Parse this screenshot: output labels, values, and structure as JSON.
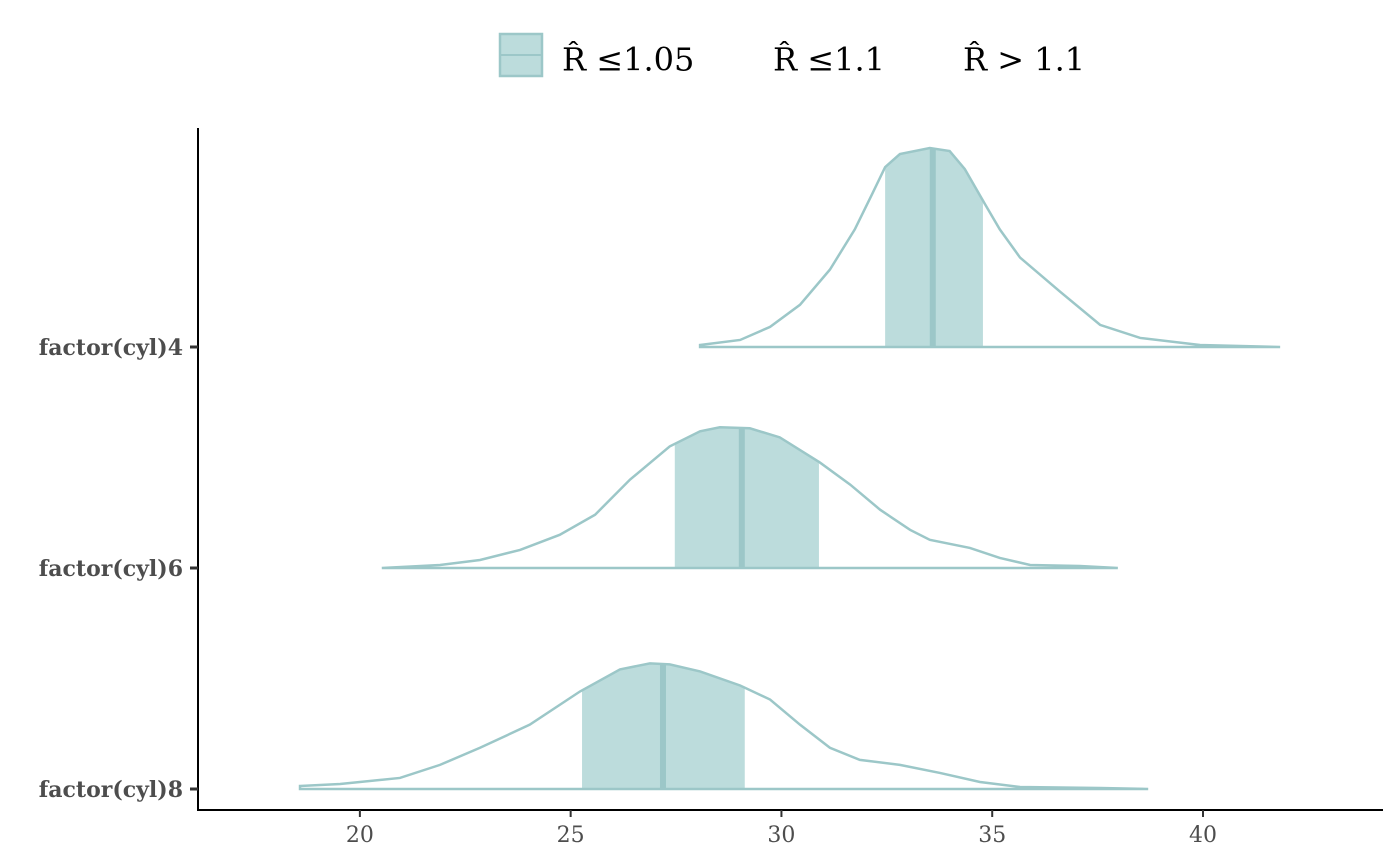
{
  "chart_data": {
    "type": "ridgeline",
    "legend": [
      {
        "name": "R̂ ≤1.05",
        "color": "#bcdcdc",
        "edge": "#9cc7c8"
      },
      {
        "name": "R̂ ≤1.1"
      },
      {
        "name": "R̂ > 1.1"
      }
    ],
    "categories": [
      "factor(cyl)4",
      "factor(cyl)6",
      "factor(cyl)8"
    ],
    "series": [
      {
        "x": [
          28.07,
          29.02,
          29.73,
          30.44,
          31.15,
          31.74,
          32.15,
          32.46,
          32.81,
          33.52,
          33.99,
          34.35,
          34.83,
          35.18,
          35.66,
          36.61,
          37.56,
          38.51,
          39.93,
          41.83
        ],
        "values": [
          0.002,
          0.007,
          0.02,
          0.042,
          0.077,
          0.117,
          0.152,
          0.179,
          0.192,
          0.198,
          0.195,
          0.177,
          0.142,
          0.117,
          0.089,
          0.055,
          0.022,
          0.009,
          0.002,
          0.0
        ],
        "interval": [
          32.46,
          34.78
        ],
        "median": 33.59
      },
      {
        "x": [
          20.52,
          21.9,
          22.85,
          23.8,
          24.74,
          25.58,
          26.41,
          27.35,
          28.07,
          28.54,
          29.25,
          29.96,
          30.91,
          31.63,
          32.34,
          33.05,
          33.52,
          34.47,
          35.18,
          35.9,
          37.08,
          37.98
        ],
        "values": [
          0.0,
          0.003,
          0.008,
          0.018,
          0.033,
          0.053,
          0.088,
          0.121,
          0.136,
          0.14,
          0.139,
          0.13,
          0.105,
          0.083,
          0.058,
          0.038,
          0.028,
          0.02,
          0.01,
          0.003,
          0.002,
          0.0
        ],
        "interval": [
          27.47,
          30.89
        ],
        "median": 29.06
      },
      {
        "x": [
          18.58,
          19.53,
          20.95,
          21.9,
          22.85,
          24.03,
          25.22,
          26.17,
          26.88,
          27.35,
          28.07,
          29.02,
          29.73,
          30.44,
          31.15,
          31.86,
          32.81,
          33.76,
          34.71,
          35.66,
          37.56,
          38.7
        ],
        "values": [
          0.003,
          0.005,
          0.011,
          0.024,
          0.041,
          0.064,
          0.097,
          0.119,
          0.125,
          0.124,
          0.117,
          0.103,
          0.089,
          0.064,
          0.041,
          0.029,
          0.024,
          0.016,
          0.007,
          0.002,
          0.001,
          0.0
        ],
        "interval": [
          25.27,
          29.13
        ],
        "median": 27.19
      }
    ],
    "xlim": [
      16.16,
      44.27
    ],
    "xticks": [
      20,
      25,
      30,
      35,
      40
    ]
  }
}
